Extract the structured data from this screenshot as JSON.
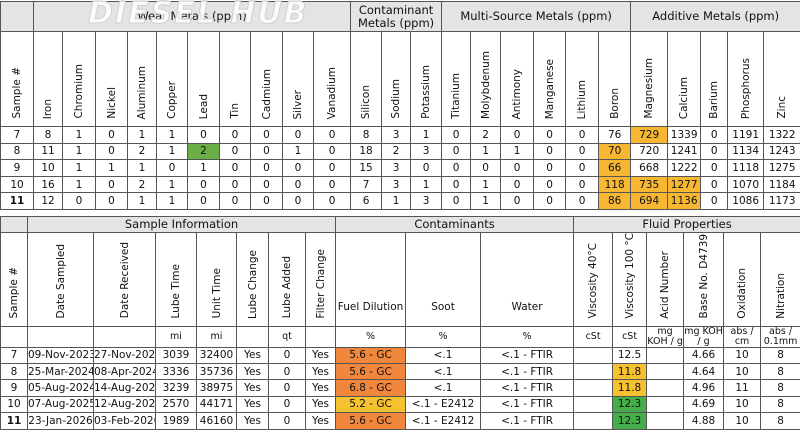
{
  "watermark": "DIESEL HUB",
  "wear_table": {
    "sample_header": "Sample #",
    "groups": [
      {
        "label": "Wear Metals (ppm)",
        "columns": [
          "Iron",
          "Chromium",
          "Nickel",
          "Aluminum",
          "Copper",
          "Lead",
          "Tin",
          "Cadmium",
          "Silver",
          "Vanadium"
        ]
      },
      {
        "label": "Contaminant Metals (ppm)",
        "columns": [
          "Silicon",
          "Sodium",
          "Potassium"
        ]
      },
      {
        "label": "Multi-Source Metals (ppm)",
        "columns": [
          "Titanium",
          "Molybdenum",
          "Antimony",
          "Manganese",
          "Lithium",
          "Boron"
        ]
      },
      {
        "label": "Additive Metals (ppm)",
        "columns": [
          "Magnesium",
          "Calcium",
          "Barium",
          "Phosphorus",
          "Zinc"
        ]
      }
    ],
    "rows": [
      {
        "sample": 7,
        "values": [
          8,
          1,
          0,
          1,
          1,
          0,
          0,
          0,
          0,
          0,
          8,
          3,
          1,
          0,
          2,
          0,
          0,
          0,
          76,
          729,
          1339,
          0,
          1191,
          1322
        ]
      },
      {
        "sample": 8,
        "values": [
          11,
          1,
          0,
          2,
          1,
          2,
          0,
          0,
          1,
          0,
          18,
          2,
          3,
          0,
          1,
          1,
          0,
          0,
          70,
          720,
          1241,
          0,
          1134,
          1243
        ]
      },
      {
        "sample": 9,
        "values": [
          10,
          1,
          1,
          1,
          0,
          1,
          0,
          0,
          0,
          0,
          15,
          3,
          0,
          0,
          0,
          0,
          0,
          0,
          66,
          668,
          1222,
          0,
          1118,
          1275
        ]
      },
      {
        "sample": 10,
        "values": [
          16,
          1,
          0,
          2,
          1,
          0,
          0,
          0,
          0,
          0,
          7,
          3,
          1,
          0,
          1,
          0,
          0,
          0,
          118,
          735,
          1277,
          0,
          1070,
          1184
        ]
      },
      {
        "sample": 11,
        "values": [
          12,
          0,
          0,
          1,
          1,
          0,
          0,
          0,
          0,
          0,
          6,
          1,
          3,
          0,
          1,
          0,
          0,
          0,
          86,
          694,
          1136,
          0,
          1086,
          1173
        ]
      }
    ],
    "bold_rows": [
      4
    ],
    "highlights": [
      [
        0,
        19,
        "#f7b733"
      ],
      [
        1,
        5,
        "#6aae45"
      ],
      [
        1,
        18,
        "#f7b733"
      ],
      [
        2,
        18,
        "#f7b733"
      ],
      [
        3,
        18,
        "#f7b733"
      ],
      [
        3,
        19,
        "#f7b733"
      ],
      [
        3,
        20,
        "#f7b733"
      ],
      [
        4,
        18,
        "#f7b733"
      ],
      [
        4,
        19,
        "#f7b733"
      ],
      [
        4,
        20,
        "#f7b733"
      ]
    ]
  },
  "fluid_table": {
    "sample_header": "Sample #",
    "groups": [
      {
        "label": "Sample Information",
        "columns": [
          {
            "label": "Date Sampled"
          },
          {
            "label": "Date  Received"
          },
          {
            "label": "Lube Time",
            "unit": "mi"
          },
          {
            "label": "Unit Time",
            "unit": "mi"
          },
          {
            "label": "Lube Change"
          },
          {
            "label": "Lube Added",
            "unit": "qt"
          },
          {
            "label": "Filter Change"
          }
        ]
      },
      {
        "label": "Contaminants",
        "columns": [
          {
            "label": "Fuel Dilution",
            "unit": "%"
          },
          {
            "label": "Soot",
            "unit": "%"
          },
          {
            "label": "Water",
            "unit": "%"
          }
        ]
      },
      {
        "label": "Fluid Properties",
        "columns": [
          {
            "label": "Viscosity 40°C",
            "unit": "cSt"
          },
          {
            "label": "Viscosity 100 °C",
            "unit": "cSt"
          },
          {
            "label": "Acid Number",
            "unit": "mg KOH / g"
          },
          {
            "label": "Base No. D4739",
            "unit": "mg KOH / g"
          },
          {
            "label": "Oxidation",
            "unit": "abs / cm"
          },
          {
            "label": "Nitration",
            "unit": "abs / 0.1mm"
          }
        ]
      }
    ],
    "rows": [
      {
        "sample": 7,
        "values": [
          "09-Nov-2023",
          "27-Nov-2023",
          3039,
          32400,
          "Yes",
          0,
          "Yes",
          "5.6 - GC",
          "<.1",
          "<.1 - FTIR",
          null,
          12.5,
          null,
          4.66,
          10,
          8
        ]
      },
      {
        "sample": 8,
        "values": [
          "25-Mar-2024",
          "08-Apr-2024",
          3336,
          35736,
          "Yes",
          0,
          "Yes",
          "5.6 - GC",
          "<.1",
          "<.1 - FTIR",
          null,
          11.8,
          null,
          4.64,
          10,
          8
        ]
      },
      {
        "sample": 9,
        "values": [
          "05-Aug-2024",
          "14-Aug-2024",
          3239,
          38975,
          "Yes",
          0,
          "Yes",
          "6.8 - GC",
          "<.1",
          "<.1 - FTIR",
          null,
          11.8,
          null,
          4.96,
          11,
          8
        ]
      },
      {
        "sample": 10,
        "values": [
          "07-Aug-2025",
          "12-Aug-2025",
          2570,
          44171,
          "Yes",
          0,
          "Yes",
          "5.2 - GC",
          "<.1 - E2412",
          "<.1 - FTIR",
          null,
          12.3,
          null,
          4.69,
          10,
          8
        ]
      },
      {
        "sample": 11,
        "values": [
          "23-Jan-2026",
          "03-Feb-2026",
          1989,
          46160,
          "Yes",
          0,
          "Yes",
          "5.6 - GC",
          "<.1 - E2412",
          "<.1 - FTIR",
          null,
          12.3,
          null,
          4.88,
          10,
          8
        ]
      }
    ],
    "bold_rows": [
      4
    ],
    "highlights": [
      [
        0,
        7,
        "#f0873d"
      ],
      [
        1,
        7,
        "#f0873d"
      ],
      [
        2,
        7,
        "#f0873d"
      ],
      [
        3,
        7,
        "#f5c12e"
      ],
      [
        4,
        7,
        "#f0873d"
      ],
      [
        1,
        11,
        "#f5c12e"
      ],
      [
        2,
        11,
        "#f5c12e"
      ],
      [
        3,
        11,
        "#45ad4a"
      ],
      [
        4,
        11,
        "#45ad4a"
      ]
    ]
  }
}
